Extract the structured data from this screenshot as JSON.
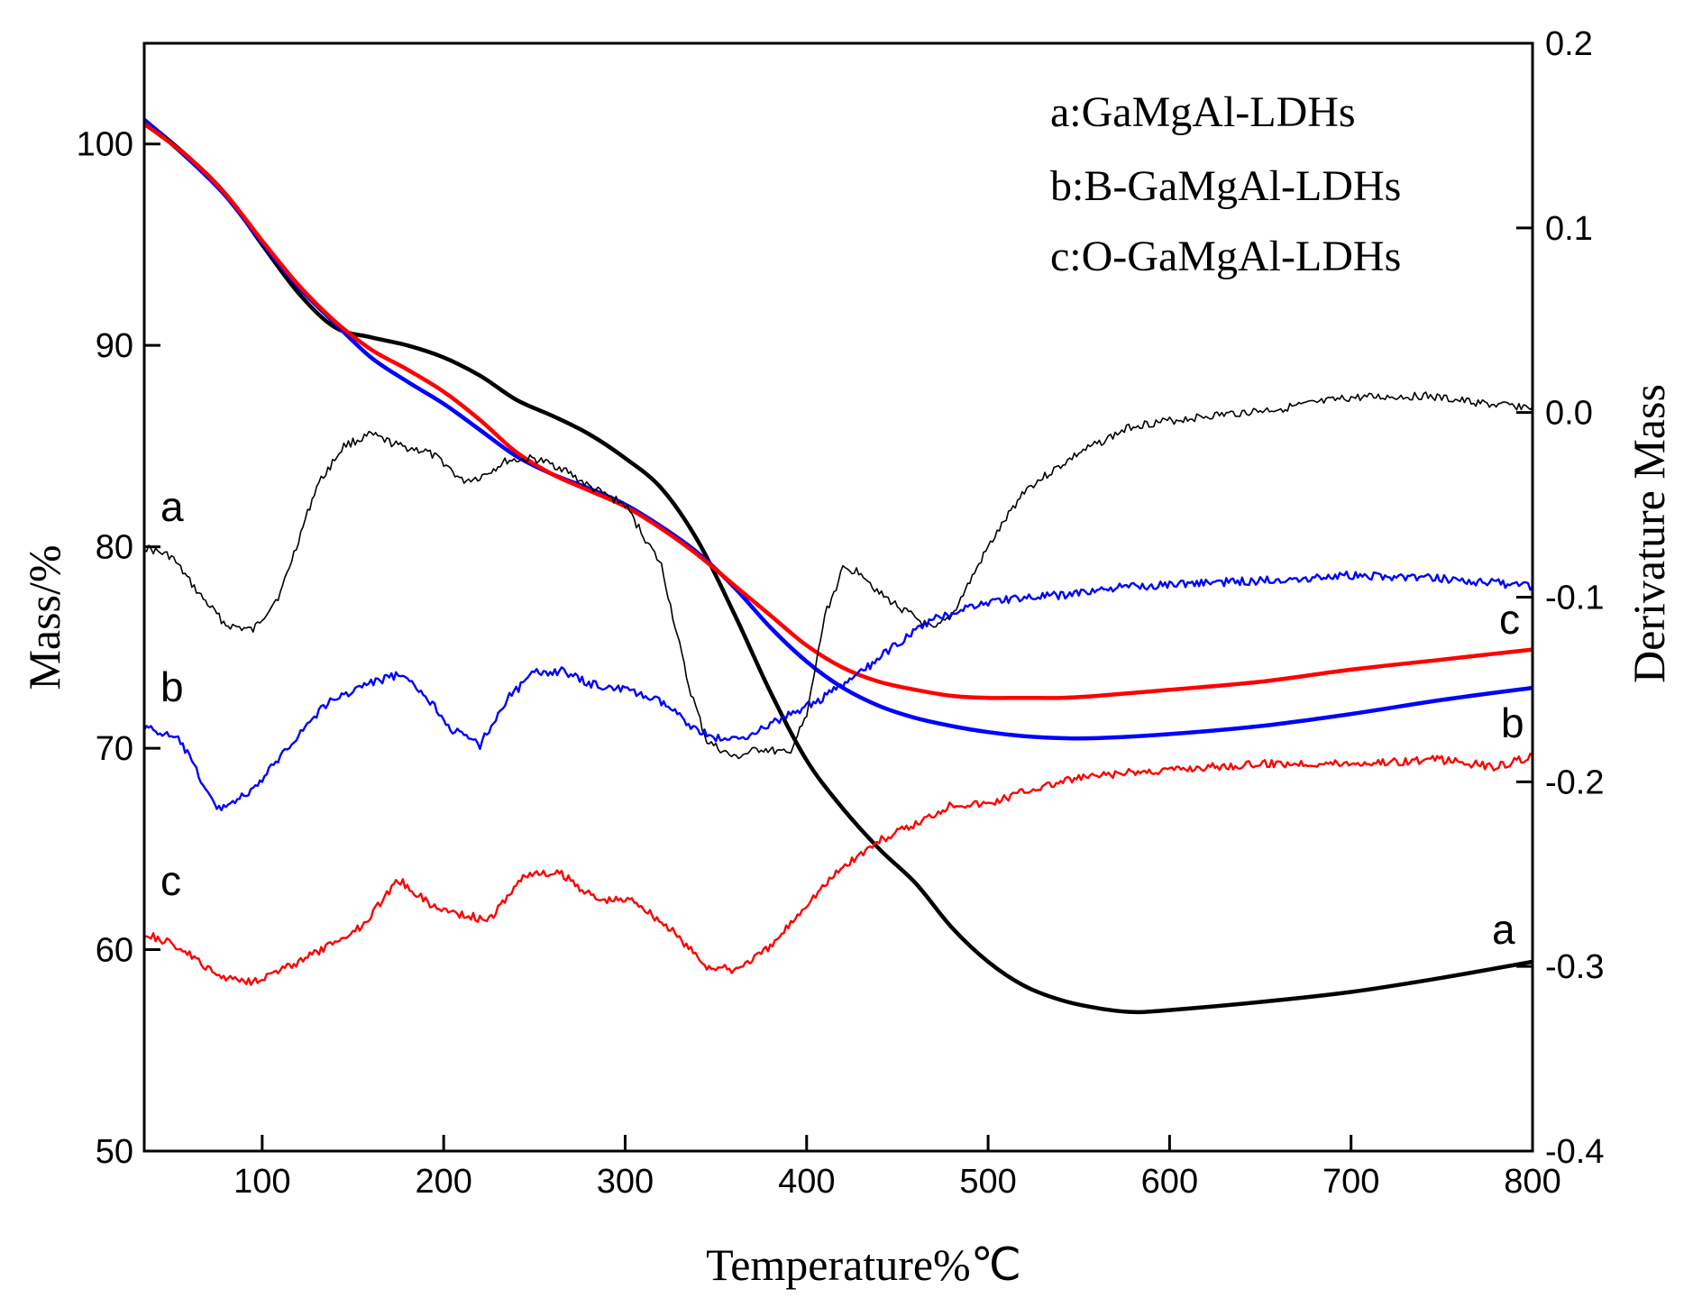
{
  "chart_data": {
    "type": "line",
    "xlabel": "Temperature%℃",
    "ylabel": "Mass/%",
    "y2label": "Derivature Mass",
    "xlim": [
      35,
      800
    ],
    "ylim": [
      50,
      105
    ],
    "y2lim": [
      -0.4,
      0.2
    ],
    "x_ticks": [
      100,
      200,
      300,
      400,
      500,
      600,
      700,
      800
    ],
    "y_ticks": [
      50,
      60,
      70,
      80,
      90,
      100
    ],
    "y2_ticks": [
      -0.4,
      -0.3,
      -0.2,
      -0.1,
      0.0,
      0.1,
      0.2
    ],
    "y2_tick_labels": [
      "-0.4",
      "-0.3",
      "-0.2",
      "-0.1",
      "0.0",
      "0.1",
      "0.2"
    ],
    "legend": [
      "a:GaMgAl-LDHs",
      "b:B-GaMgAl-LDHs",
      "c:O-GaMgAl-LDHs"
    ],
    "legend_position": "top-right",
    "grid": false,
    "colors": {
      "a": "#000000",
      "b": "#0000ff",
      "c": "#ff0000"
    },
    "series": [
      {
        "name": "a",
        "axis": "left",
        "kind": "TG",
        "color": "#000000",
        "end_label": "a",
        "x": [
          35,
          60,
          80,
          100,
          120,
          140,
          160,
          180,
          200,
          220,
          240,
          260,
          280,
          300,
          320,
          340,
          360,
          380,
          400,
          420,
          440,
          460,
          480,
          500,
          520,
          540,
          560,
          580,
          600,
          650,
          700,
          750,
          800
        ],
        "y": [
          101.2,
          99.3,
          97.5,
          95.0,
          92.6,
          90.9,
          90.4,
          90.0,
          89.4,
          88.5,
          87.3,
          86.5,
          85.6,
          84.4,
          82.9,
          80.3,
          76.7,
          72.8,
          69.4,
          67.0,
          65.0,
          63.3,
          61.1,
          59.4,
          58.2,
          57.5,
          57.1,
          56.9,
          57.0,
          57.4,
          57.9,
          58.6,
          59.4
        ]
      },
      {
        "name": "b",
        "axis": "left",
        "kind": "TG",
        "color": "#0000ff",
        "end_label": "b",
        "x": [
          35,
          60,
          80,
          100,
          120,
          140,
          160,
          180,
          200,
          220,
          240,
          260,
          280,
          300,
          320,
          340,
          360,
          380,
          400,
          420,
          440,
          460,
          480,
          500,
          520,
          540,
          560,
          600,
          650,
          700,
          750,
          800
        ],
        "y": [
          101.2,
          99.2,
          97.4,
          95.1,
          92.9,
          91.1,
          89.4,
          88.2,
          87.1,
          85.8,
          84.5,
          83.6,
          82.9,
          82.1,
          81.0,
          79.7,
          78.0,
          76.0,
          74.3,
          73.0,
          72.1,
          71.5,
          71.1,
          70.8,
          70.6,
          70.5,
          70.5,
          70.7,
          71.1,
          71.7,
          72.4,
          73.0
        ]
      },
      {
        "name": "c",
        "axis": "left",
        "kind": "TG",
        "color": "#ff0000",
        "end_label": "c",
        "x": [
          35,
          60,
          80,
          100,
          120,
          140,
          160,
          180,
          200,
          220,
          240,
          260,
          280,
          300,
          320,
          340,
          360,
          380,
          400,
          420,
          440,
          460,
          480,
          500,
          520,
          540,
          560,
          600,
          650,
          700,
          750,
          800
        ],
        "y": [
          101.0,
          99.3,
          97.5,
          95.2,
          93.0,
          91.2,
          89.8,
          88.8,
          87.7,
          86.3,
          84.7,
          83.6,
          82.8,
          82.0,
          80.9,
          79.6,
          78.1,
          76.6,
          75.1,
          74.0,
          73.3,
          72.9,
          72.6,
          72.5,
          72.5,
          72.5,
          72.6,
          72.9,
          73.3,
          73.9,
          74.4,
          74.9
        ]
      },
      {
        "name": "a",
        "axis": "right",
        "kind": "DTG",
        "color": "#000000",
        "start_label": "a",
        "x": [
          35,
          50,
          65,
          80,
          95,
          110,
          130,
          145,
          160,
          175,
          190,
          200,
          210,
          220,
          235,
          250,
          265,
          280,
          300,
          320,
          335,
          345,
          360,
          375,
          390,
          400,
          410,
          420,
          430,
          440,
          455,
          470,
          480,
          500,
          520,
          550,
          580,
          620,
          660,
          700,
          740,
          780,
          800
        ],
        "y": [
          -0.073,
          -0.078,
          -0.098,
          -0.115,
          -0.118,
          -0.098,
          -0.04,
          -0.018,
          -0.012,
          -0.018,
          -0.021,
          -0.027,
          -0.037,
          -0.035,
          -0.026,
          -0.025,
          -0.03,
          -0.04,
          -0.05,
          -0.083,
          -0.148,
          -0.178,
          -0.187,
          -0.182,
          -0.185,
          -0.165,
          -0.11,
          -0.085,
          -0.086,
          -0.098,
          -0.108,
          -0.118,
          -0.11,
          -0.073,
          -0.042,
          -0.022,
          -0.007,
          -0.002,
          0.002,
          0.008,
          0.009,
          0.004,
          0.003
        ]
      },
      {
        "name": "b",
        "axis": "right",
        "kind": "DTG",
        "color": "#0000ff",
        "start_label": "b",
        "x": [
          35,
          55,
          75,
          95,
          115,
          135,
          155,
          175,
          190,
          205,
          220,
          235,
          250,
          265,
          280,
          300,
          320,
          340,
          355,
          370,
          390,
          410,
          430,
          450,
          470,
          490,
          510,
          540,
          570,
          600,
          650,
          700,
          750,
          800
        ],
        "y": [
          -0.17,
          -0.178,
          -0.215,
          -0.205,
          -0.18,
          -0.158,
          -0.148,
          -0.142,
          -0.153,
          -0.172,
          -0.18,
          -0.155,
          -0.141,
          -0.14,
          -0.147,
          -0.15,
          -0.157,
          -0.172,
          -0.178,
          -0.174,
          -0.164,
          -0.154,
          -0.141,
          -0.125,
          -0.112,
          -0.105,
          -0.101,
          -0.099,
          -0.095,
          -0.093,
          -0.091,
          -0.088,
          -0.09,
          -0.094
        ]
      },
      {
        "name": "c",
        "axis": "right",
        "kind": "DTG",
        "color": "#ff0000",
        "start_label": "c",
        "x": [
          35,
          55,
          75,
          95,
          115,
          135,
          155,
          175,
          195,
          215,
          225,
          245,
          265,
          285,
          305,
          325,
          345,
          360,
          380,
          400,
          420,
          440,
          460,
          480,
          500,
          520,
          550,
          580,
          620,
          660,
          700,
          750,
          780,
          800
        ],
        "y": [
          -0.282,
          -0.29,
          -0.305,
          -0.308,
          -0.3,
          -0.29,
          -0.278,
          -0.253,
          -0.268,
          -0.273,
          -0.275,
          -0.25,
          -0.25,
          -0.264,
          -0.264,
          -0.28,
          -0.3,
          -0.302,
          -0.29,
          -0.266,
          -0.246,
          -0.232,
          -0.223,
          -0.212,
          -0.212,
          -0.205,
          -0.198,
          -0.195,
          -0.192,
          -0.19,
          -0.19,
          -0.188,
          -0.192,
          -0.186
        ]
      }
    ]
  }
}
